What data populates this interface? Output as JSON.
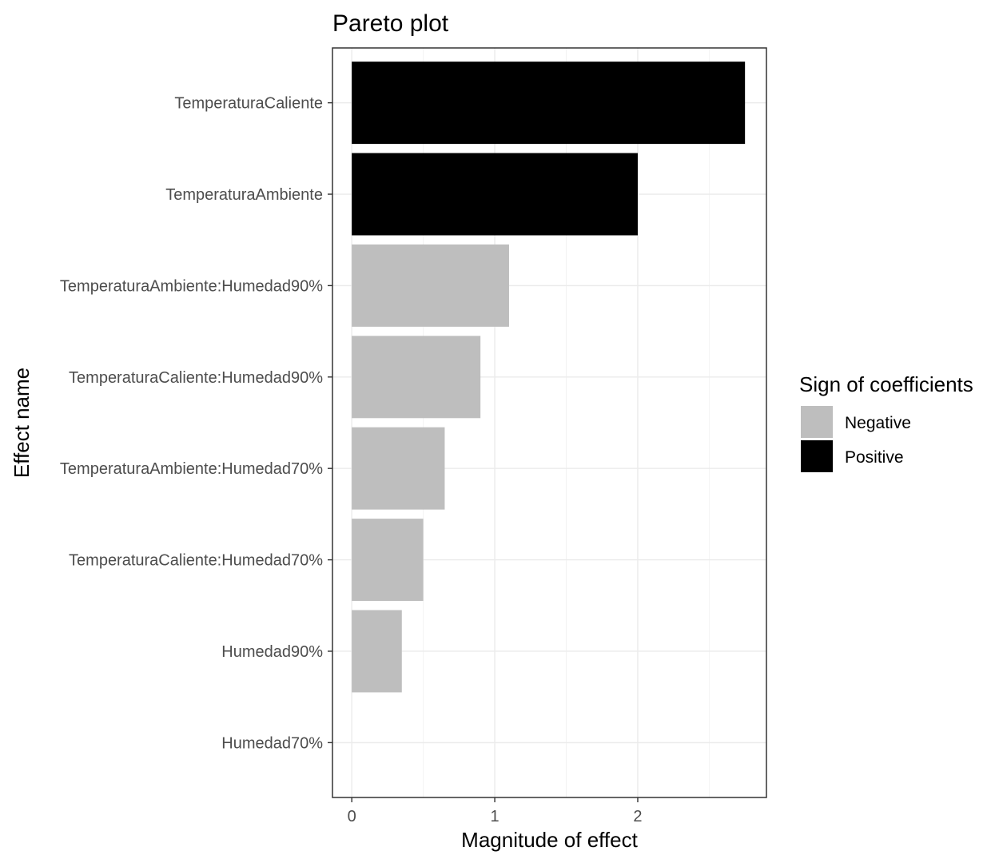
{
  "chart_data": {
    "type": "bar",
    "orientation": "horizontal",
    "title": "Pareto plot",
    "xlabel": "Magnitude of effect",
    "ylabel": "Effect name",
    "categories": [
      "TemperaturaCaliente",
      "TemperaturaAmbiente",
      "TemperaturaAmbiente:Humedad90%",
      "TemperaturaCaliente:Humedad90%",
      "TemperaturaAmbiente:Humedad70%",
      "TemperaturaCaliente:Humedad70%",
      "Humedad90%",
      "Humedad70%"
    ],
    "values": [
      2.75,
      2.0,
      1.1,
      0.9,
      0.65,
      0.5,
      0.35,
      0.0
    ],
    "signs": [
      "Positive",
      "Positive",
      "Negative",
      "Negative",
      "Negative",
      "Negative",
      "Negative",
      "Negative"
    ],
    "xlim": [
      -0.135,
      2.9
    ],
    "xticks": [
      0,
      1,
      2
    ],
    "grid": true,
    "legend": {
      "title": "Sign of coefficients",
      "placement": "right",
      "entries": [
        {
          "label": "Negative",
          "color": "#bebebe"
        },
        {
          "label": "Positive",
          "color": "#000000"
        }
      ]
    }
  }
}
